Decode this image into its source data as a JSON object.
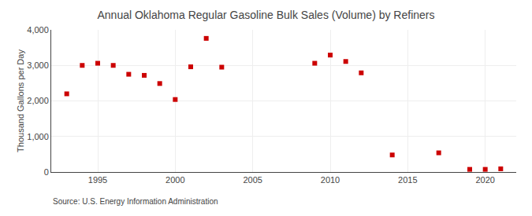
{
  "chart_data": {
    "type": "scatter",
    "title": "Annual Oklahoma Regular Gasoline Bulk Sales (Volume) by Refiners",
    "ylabel": "Thousand Gallons per Day",
    "source": "Source: U.S. Energy Information Administration",
    "x": [
      1993,
      1994,
      1995,
      1996,
      1997,
      1998,
      1999,
      2000,
      2001,
      2002,
      2003,
      2009,
      2010,
      2011,
      2012,
      2014,
      2017,
      2019,
      2020,
      2021
    ],
    "values": [
      2200,
      3000,
      3060,
      3000,
      2750,
      2720,
      2490,
      2040,
      2960,
      3760,
      2950,
      3060,
      3290,
      3110,
      2790,
      480,
      540,
      75,
      75,
      90
    ],
    "color": "#cc0000",
    "marker": "square",
    "xlim": [
      1992,
      2022
    ],
    "xticks": [
      1995,
      2000,
      2005,
      2010,
      2015,
      2020
    ],
    "ylim": [
      0,
      4000
    ],
    "yticks": [
      0,
      {
        "value": 1000,
        "label": "1,000"
      },
      {
        "value": 2000,
        "label": "2,000"
      },
      {
        "value": 3000,
        "label": "3,000"
      },
      {
        "value": 4000,
        "label": "4,000"
      }
    ],
    "grid": true
  }
}
